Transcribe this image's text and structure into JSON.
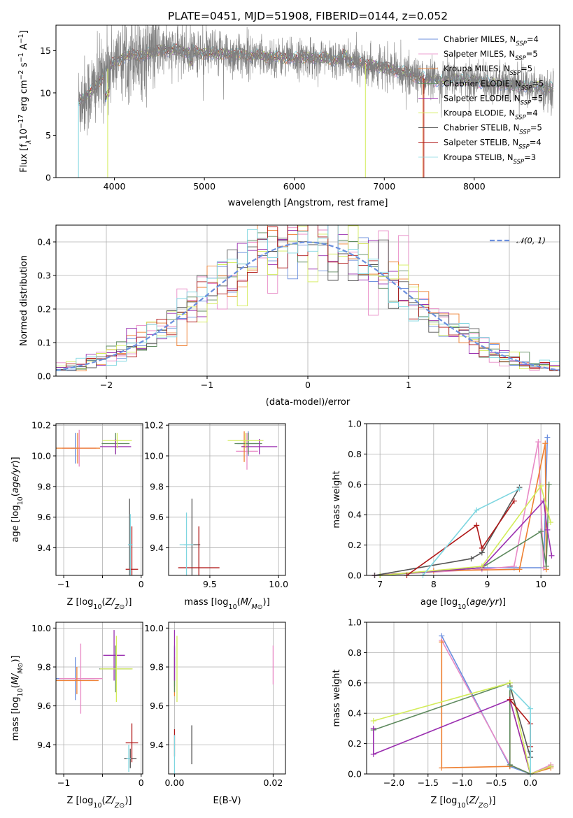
{
  "colors": [
    "#6b8fde",
    "#e88ac6",
    "#ee8032",
    "#5e8a5e",
    "#9b30b0",
    "#d3ec5a",
    "#555555",
    "#b01818",
    "#7ed6e0"
  ],
  "chart_data": [
    {
      "id": "spectrum",
      "type": "line",
      "title": "PLATE=0451, MJD=51908, FIBERID=0144, z=0.052",
      "xlabel": "wavelength [Angstrom, rest frame]",
      "ylabel_parts": [
        "Flux [f",
        "λ",
        "10",
        "−17",
        " erg cm",
        "−2",
        " s",
        "−1",
        " A",
        "−1",
        "]"
      ],
      "xlim": [
        3350,
        8950
      ],
      "ylim": [
        0,
        18
      ],
      "xticks": [
        4000,
        5000,
        6000,
        7000,
        8000
      ],
      "xtick_labels": [
        "4000",
        "5000",
        "6000",
        "7000",
        "8000"
      ],
      "yticks": [
        0,
        5,
        10,
        15
      ],
      "ytick_labels": [
        "0",
        "5",
        "10",
        "15"
      ],
      "grid": false,
      "legend_position": "top-right",
      "legend": [
        {
          "main": "Chabrier MILES, N",
          "sub": "SSP",
          "rest": "=4"
        },
        {
          "main": "Salpeter MILES, N",
          "sub": "SSP",
          "rest": "=5"
        },
        {
          "main": "Kroupa MILES, N",
          "sub": "SSP",
          "rest": "=5"
        },
        {
          "main": "Chabrier ELODIE, N",
          "sub": "SSP",
          "rest": "=5"
        },
        {
          "main": "Salpeter ELODIE, N",
          "sub": "SSP",
          "rest": "=5"
        },
        {
          "main": "Kroupa ELODIE, N",
          "sub": "SSP",
          "rest": "=4"
        },
        {
          "main": "Chabrier STELIB, N",
          "sub": "SSP",
          "rest": "=5"
        },
        {
          "main": "Salpeter STELIB, N",
          "sub": "SSP",
          "rest": "=4"
        },
        {
          "main": "Kroupa STELIB, N",
          "sub": "SSP",
          "rest": "=3"
        }
      ],
      "continuum": {
        "x": [
          3600,
          3700,
          3800,
          3900,
          4000,
          4100,
          4200,
          4300,
          4400,
          4500,
          4600,
          4800,
          5000,
          5200,
          5400,
          5600,
          5800,
          6000,
          6200,
          6400,
          6600,
          6800,
          7000,
          7200,
          7400,
          7600,
          7800,
          8000,
          8200,
          8400,
          8600,
          8800
        ],
        "y": [
          9.0,
          9.8,
          10.8,
          12.6,
          13.6,
          14.2,
          14.6,
          14.3,
          14.8,
          15.0,
          15.1,
          14.9,
          14.7,
          14.6,
          14.5,
          14.4,
          14.2,
          14.1,
          14.2,
          14.0,
          13.8,
          13.4,
          13.0,
          12.5,
          11.8,
          11.4,
          11.6,
          11.4,
          11.2,
          10.9,
          10.8,
          10.6
        ]
      },
      "observed_line_color": "#808080",
      "dropouts": [
        {
          "x": 3600,
          "y": 0,
          "series": 8
        },
        {
          "x": 3925,
          "y": 0,
          "series": 5
        },
        {
          "x": 6790,
          "y": 0,
          "series": 5
        },
        {
          "x": 7430,
          "y": 0,
          "series": 2
        },
        {
          "x": 7440,
          "y": 0,
          "series": 7
        }
      ]
    },
    {
      "id": "residuals",
      "type": "histogram",
      "xlabel": "(data-model)/error",
      "ylabel": "Normed distribution",
      "xlim": [
        -2.5,
        2.5
      ],
      "ylim": [
        0,
        0.45
      ],
      "xticks": [
        -2,
        -1,
        0,
        1,
        2
      ],
      "xtick_labels": [
        "−2",
        "−1",
        "0",
        "1",
        "2"
      ],
      "yticks": [
        0.0,
        0.1,
        0.2,
        0.3,
        0.4
      ],
      "ytick_labels": [
        "0.0",
        "0.1",
        "0.2",
        "0.3",
        "0.4"
      ],
      "grid": true,
      "legend_position": "top-right",
      "reference_label": "𝒩(0, 1)",
      "reference_color": "#6b8fde",
      "bin_width": 0.1
    },
    {
      "id": "age-vs-Z",
      "type": "errorbar",
      "xlabel": "Z [log10(Z/Z⊙)]",
      "ylabel": "age  [log10(age/yr)]",
      "xlim": [
        -1.1,
        0.02
      ],
      "ylim": [
        9.22,
        10.21
      ],
      "xticks": [
        -1,
        -0.5,
        0
      ],
      "xtick_labels": [
        "−1",
        "",
        "0"
      ],
      "yticks": [
        9.4,
        9.6,
        9.8,
        10.0,
        10.2
      ],
      "ytick_labels": [
        "9.4",
        "9.6",
        "9.8",
        "10.0",
        "10.2"
      ],
      "grid": true,
      "points": [
        {
          "x": -0.85,
          "y": 10.05,
          "xerr": 0.06,
          "yerr": 0.1
        },
        {
          "x": -0.8,
          "y": 10.05,
          "xerr": 0.22,
          "yerr": 0.12
        },
        {
          "x": -0.82,
          "y": 10.05,
          "xerr": 0.29,
          "yerr": 0.1
        },
        {
          "x": -0.33,
          "y": 10.08,
          "xerr": 0.18,
          "yerr": 0.07
        },
        {
          "x": -0.33,
          "y": 10.06,
          "xerr": 0.2,
          "yerr": 0.05
        },
        {
          "x": -0.31,
          "y": 10.1,
          "xerr": 0.19,
          "yerr": 0.05
        },
        {
          "x": -0.15,
          "y": 9.42,
          "xerr": 0.02,
          "yerr": 0.3
        },
        {
          "x": -0.12,
          "y": 9.26,
          "xerr": 0.08,
          "yerr": 0.28
        },
        {
          "x": -0.14,
          "y": 9.42,
          "xerr": 0.03,
          "yerr": 0.2
        }
      ]
    },
    {
      "id": "age-vs-mass",
      "type": "errorbar",
      "xlabel": "mass [log10(M/M⊙)]",
      "ylabel": "",
      "xlim": [
        9.2,
        10.05
      ],
      "ylim": [
        9.22,
        10.21
      ],
      "xticks": [
        9.5,
        10.0
      ],
      "xtick_labels": [
        "9.5",
        "10.0"
      ],
      "yticks": [
        9.4,
        9.6,
        9.8,
        10.0,
        10.2
      ],
      "ytick_labels": [
        "9.4",
        "9.6",
        "9.8",
        "10.0",
        "10.2"
      ],
      "grid": true,
      "points": [
        {
          "x": 9.78,
          "y": 10.08,
          "xerr": 0.08,
          "yerr": 0.08
        },
        {
          "x": 9.77,
          "y": 10.03,
          "xerr": 0.08,
          "yerr": 0.12
        },
        {
          "x": 9.75,
          "y": 10.06,
          "xerr": 0.02,
          "yerr": 0.1
        },
        {
          "x": 9.78,
          "y": 10.08,
          "xerr": 0.1,
          "yerr": 0.07
        },
        {
          "x": 9.86,
          "y": 10.06,
          "xerr": 0.13,
          "yerr": 0.05
        },
        {
          "x": 9.76,
          "y": 10.1,
          "xerr": 0.13,
          "yerr": 0.05
        },
        {
          "x": 9.37,
          "y": 9.42,
          "xerr": 0.06,
          "yerr": 0.3
        },
        {
          "x": 9.42,
          "y": 9.27,
          "xerr": 0.15,
          "yerr": 0.27
        },
        {
          "x": 9.33,
          "y": 9.42,
          "xerr": 0.05,
          "yerr": 0.21
        }
      ]
    },
    {
      "id": "weight-vs-age",
      "type": "line",
      "xlabel": "age  [log10(age/yr)]",
      "ylabel": "mass weight",
      "xlim": [
        6.75,
        10.35
      ],
      "ylim": [
        0,
        1
      ],
      "xticks": [
        7,
        8,
        9,
        10
      ],
      "xtick_labels": [
        "7",
        "8",
        "9",
        "10"
      ],
      "yticks": [
        0,
        0.2,
        0.4,
        0.6,
        0.8,
        1.0
      ],
      "ytick_labels": [
        "0.0",
        "0.2",
        "0.4",
        "0.6",
        "0.8",
        "1.0"
      ],
      "grid": true,
      "series": [
        {
          "x": [
            6.9,
            8.9,
            9.5,
            10.05,
            10.12
          ],
          "y": [
            0.0,
            0.05,
            0.05,
            0.05,
            0.91
          ]
        },
        {
          "x": [
            6.9,
            8.9,
            9.5,
            9.95,
            10.05
          ],
          "y": [
            0.0,
            0.04,
            0.06,
            0.88,
            0.05
          ]
        },
        {
          "x": [
            6.9,
            8.0,
            9.6,
            10.08,
            10.1
          ],
          "y": [
            0.0,
            0.03,
            0.04,
            0.87,
            0.04
          ]
        },
        {
          "x": [
            7.0,
            8.9,
            10.0,
            10.1,
            10.15
          ],
          "y": [
            0.0,
            0.05,
            0.29,
            0.06,
            0.6
          ]
        },
        {
          "x": [
            6.9,
            8.9,
            10.05,
            10.12,
            10.2
          ],
          "y": [
            0.0,
            0.05,
            0.49,
            0.3,
            0.13
          ]
        },
        {
          "x": [
            7.0,
            8.9,
            10.0,
            10.18
          ],
          "y": [
            0.0,
            0.06,
            0.59,
            0.35
          ]
        },
        {
          "x": [
            6.9,
            8.7,
            8.9,
            9.6
          ],
          "y": [
            0.0,
            0.11,
            0.15,
            0.58
          ]
        },
        {
          "x": [
            7.5,
            8.8,
            8.9,
            9.5
          ],
          "y": [
            0.0,
            0.33,
            0.18,
            0.49
          ]
        },
        {
          "x": [
            7.8,
            8.8,
            9.6
          ],
          "y": [
            0.0,
            0.43,
            0.57
          ]
        }
      ]
    },
    {
      "id": "mass-vs-Z",
      "type": "errorbar",
      "xlabel": "Z [log10(Z/Z⊙)]",
      "ylabel": "mass [log10(M/M⊙)]",
      "xlim": [
        -1.1,
        0.02
      ],
      "ylim": [
        9.25,
        10.03
      ],
      "xticks": [
        -1,
        -0.5,
        0
      ],
      "xtick_labels": [
        "−1",
        "",
        "0"
      ],
      "yticks": [
        9.4,
        9.6,
        9.8,
        10.0
      ],
      "ytick_labels": [
        "9.4",
        "9.6",
        "9.8",
        "10.0"
      ],
      "grid": true,
      "points": [
        {
          "x": -0.85,
          "y": 9.74,
          "xerr": 0.25,
          "yerr": 0.11
        },
        {
          "x": -0.78,
          "y": 9.74,
          "xerr": 0.28,
          "yerr": 0.18
        },
        {
          "x": -0.83,
          "y": 9.73,
          "xerr": 0.28,
          "yerr": 0.07
        },
        {
          "x": -0.33,
          "y": 9.79,
          "xerr": 0.21,
          "yerr": 0.12
        },
        {
          "x": -0.35,
          "y": 9.86,
          "xerr": 0.14,
          "yerr": 0.13
        },
        {
          "x": -0.32,
          "y": 9.79,
          "xerr": 0.21,
          "yerr": 0.17
        },
        {
          "x": -0.14,
          "y": 9.33,
          "xerr": 0.08,
          "yerr": 0.05
        },
        {
          "x": -0.12,
          "y": 9.41,
          "xerr": 0.08,
          "yerr": 0.1
        },
        {
          "x": -0.16,
          "y": 9.33,
          "xerr": 0.03,
          "yerr": 0.07
        }
      ]
    },
    {
      "id": "mass-vs-ebv",
      "type": "errorbar",
      "xlabel": "E(B-V)",
      "ylabel": "",
      "xlim": [
        -0.0012,
        0.0225
      ],
      "ylim": [
        9.25,
        10.03
      ],
      "xticks": [
        0.0,
        0.02
      ],
      "xtick_labels": [
        "0.00",
        "0.02"
      ],
      "yticks": [
        9.4,
        9.6,
        9.8,
        10.0
      ],
      "ytick_labels": [
        "9.4",
        "9.6",
        "9.8",
        "10.0"
      ],
      "grid": true,
      "points": [
        {
          "x": 0.0,
          "y": 9.8,
          "xerr": 0,
          "yerr": 0.1
        },
        {
          "x": 0.02,
          "y": 9.81,
          "xerr": 0,
          "yerr": 0.1
        },
        {
          "x": 0.0,
          "y": 9.75,
          "xerr": 0,
          "yerr": 0.1
        },
        {
          "x": 0.0,
          "y": 9.79,
          "xerr": 0,
          "yerr": 0.12
        },
        {
          "x": 0.0,
          "y": 9.86,
          "xerr": 0,
          "yerr": 0.13
        },
        {
          "x": 0.0005,
          "y": 9.79,
          "xerr": 0,
          "yerr": 0.17
        },
        {
          "x": 0.0035,
          "y": 9.4,
          "xerr": 0,
          "yerr": 0.1
        },
        {
          "x": 0.0,
          "y": 9.41,
          "xerr": 0,
          "yerr": 0.07
        },
        {
          "x": 0.0,
          "y": 9.33,
          "xerr": 0,
          "yerr": 0.12
        }
      ]
    },
    {
      "id": "weight-vs-Z",
      "type": "line",
      "xlabel": "Z [log10(Z/Z⊙)]",
      "ylabel": "mass weight",
      "xlim": [
        -2.4,
        0.43
      ],
      "ylim": [
        0,
        1
      ],
      "xticks": [
        -2.0,
        -1.5,
        -1.0,
        -0.5,
        0.0
      ],
      "xtick_labels": [
        "−2.0",
        "−1.5",
        "−1.0",
        "−0.5",
        "0.0"
      ],
      "yticks": [
        0,
        0.2,
        0.4,
        0.6,
        0.8,
        1.0
      ],
      "ytick_labels": [
        "0.0",
        "0.2",
        "0.4",
        "0.6",
        "0.8",
        "1.0"
      ],
      "grid": true,
      "series": [
        {
          "x": [
            -1.3,
            -0.3,
            0.0,
            0.3
          ],
          "y": [
            0.91,
            0.05,
            0.0,
            0.05
          ]
        },
        {
          "x": [
            -1.3,
            -0.3,
            0.0,
            0.3
          ],
          "y": [
            0.88,
            0.06,
            0.0,
            0.06
          ]
        },
        {
          "x": [
            -1.3,
            -1.3,
            -0.3,
            -0.3,
            0.0,
            0.3
          ],
          "y": [
            0.87,
            0.04,
            0.05,
            0.49,
            0.0,
            0.04
          ]
        },
        {
          "x": [
            -2.3,
            -0.3,
            -0.3,
            0.0
          ],
          "y": [
            0.29,
            0.6,
            0.06,
            0.0
          ]
        },
        {
          "x": [
            -2.3,
            -2.3,
            -0.3,
            0.0,
            0.3
          ],
          "y": [
            0.3,
            0.13,
            0.49,
            0.0,
            0.05
          ]
        },
        {
          "x": [
            -2.3,
            -0.3,
            0.0,
            0.3
          ],
          "y": [
            0.35,
            0.6,
            0.0,
            0.05
          ]
        },
        {
          "x": [
            -0.3,
            0.0,
            0.0
          ],
          "y": [
            0.58,
            0.11,
            0.15
          ]
        },
        {
          "x": [
            -0.3,
            0.0,
            0.0
          ],
          "y": [
            0.49,
            0.33,
            0.18
          ]
        },
        {
          "x": [
            -0.3,
            0.0,
            0.0
          ],
          "y": [
            0.57,
            0.43,
            0.0
          ]
        }
      ]
    }
  ]
}
